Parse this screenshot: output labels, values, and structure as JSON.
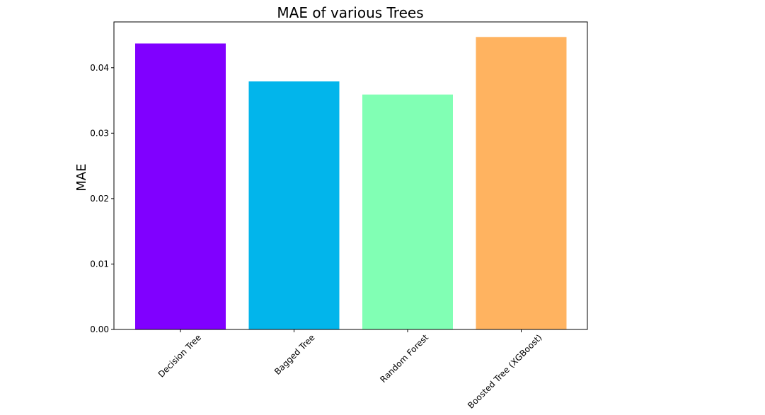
{
  "chart_data": {
    "type": "bar",
    "title": "MAE of various Trees",
    "xlabel": "",
    "ylabel": "MAE",
    "categories": [
      "Decision Tree",
      "Bagged Tree",
      "Random Forest",
      "Boosted Tree (XGBoost)"
    ],
    "values": [
      0.0437,
      0.0379,
      0.0359,
      0.0447
    ],
    "colors": [
      "#8000ff",
      "#02b5eb",
      "#81ffb4",
      "#ffb360"
    ],
    "ylim": [
      0,
      0.047
    ],
    "yticks": [
      0.0,
      0.01,
      0.02,
      0.03,
      0.04
    ],
    "ytick_labels": [
      "0.00",
      "0.01",
      "0.02",
      "0.03",
      "0.04"
    ],
    "grid": false
  }
}
